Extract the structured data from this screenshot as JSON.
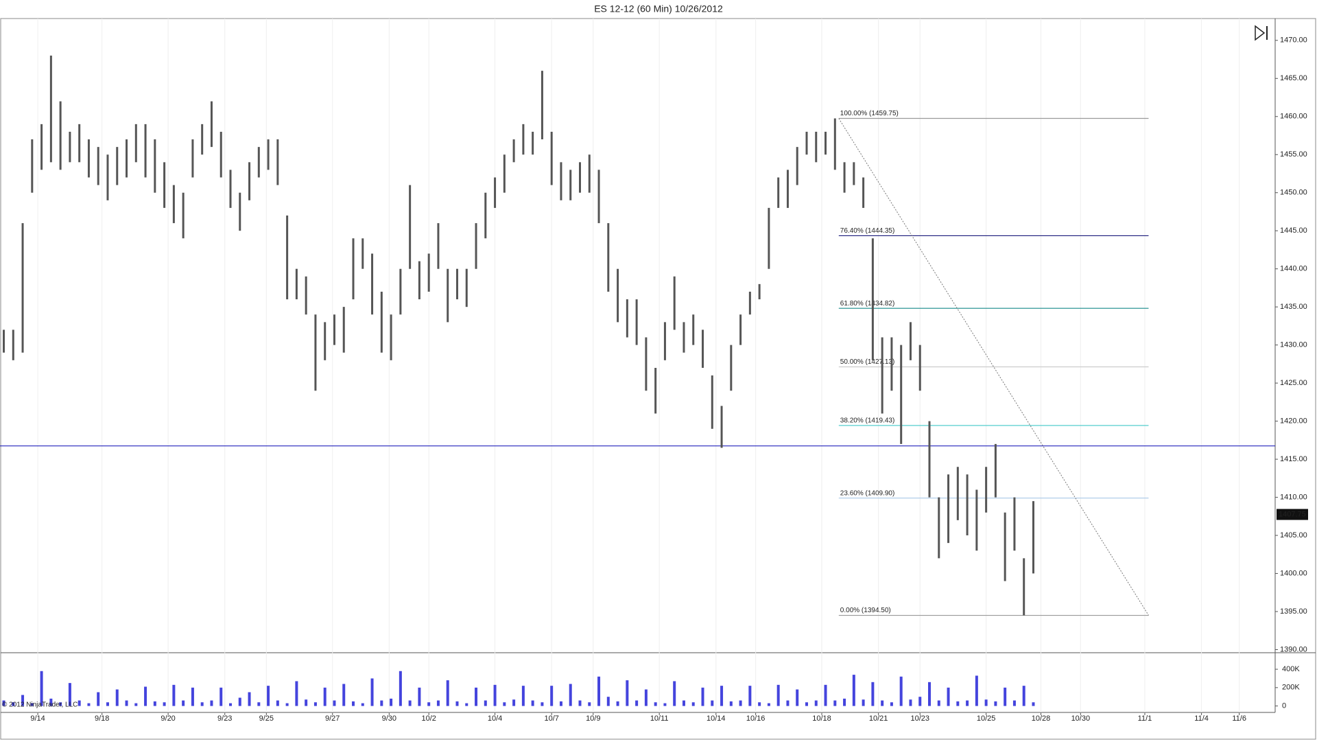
{
  "chart_data": {
    "type": "ohlc",
    "title": "ES 12-12 (60 Min)  10/26/2012",
    "copyright": "© 2012 NinjaTrader, LLC",
    "color": "#555555",
    "grid": "x",
    "xlim": [
      0,
      675
    ],
    "xticks": [
      {
        "value": 20,
        "label": "9/14"
      },
      {
        "value": 54,
        "label": "9/18"
      },
      {
        "value": 89,
        "label": "9/20"
      },
      {
        "value": 119,
        "label": "9/23"
      },
      {
        "value": 141,
        "label": "9/25"
      },
      {
        "value": 176,
        "label": "9/27"
      },
      {
        "value": 206,
        "label": "9/30"
      },
      {
        "value": 227,
        "label": "10/2"
      },
      {
        "value": 262,
        "label": "10/4"
      },
      {
        "value": 292,
        "label": "10/7"
      },
      {
        "value": 314,
        "label": "10/9"
      },
      {
        "value": 349,
        "label": "10/11"
      },
      {
        "value": 379,
        "label": "10/14"
      },
      {
        "value": 400,
        "label": "10/16"
      },
      {
        "value": 435,
        "label": "10/18"
      },
      {
        "value": 465,
        "label": "10/21"
      },
      {
        "value": 487,
        "label": "10/23"
      },
      {
        "value": 522,
        "label": "10/25"
      },
      {
        "value": 551,
        "label": "10/28"
      },
      {
        "value": 572,
        "label": "10/30"
      },
      {
        "value": 606,
        "label": "11/1"
      },
      {
        "value": 636,
        "label": "11/4"
      },
      {
        "value": 656,
        "label": "11/6"
      }
    ],
    "ylim": [
      1390,
      1470
    ],
    "yticks": [
      {
        "value": 1390,
        "label": "1390.00"
      },
      {
        "value": 1395,
        "label": "1395.00"
      },
      {
        "value": 1400,
        "label": "1400.00"
      },
      {
        "value": 1405,
        "label": "1405.00"
      },
      {
        "value": 1410,
        "label": "1410.00"
      },
      {
        "value": 1415,
        "label": "1415.00"
      },
      {
        "value": 1420,
        "label": "1420.00"
      },
      {
        "value": 1425,
        "label": "1425.00"
      },
      {
        "value": 1430,
        "label": "1430.00"
      },
      {
        "value": 1435,
        "label": "1435.00"
      },
      {
        "value": 1440,
        "label": "1440.00"
      },
      {
        "value": 1445,
        "label": "1445.00"
      },
      {
        "value": 1450,
        "label": "1450.00"
      },
      {
        "value": 1455,
        "label": "1455.00"
      },
      {
        "value": 1460,
        "label": "1460.00"
      },
      {
        "value": 1465,
        "label": "1465.00"
      },
      {
        "value": 1470,
        "label": "1470.00"
      }
    ],
    "last_price": 1407.75,
    "support_line": {
      "value": 1416.75,
      "color": "#2222bb"
    },
    "bars": {
      "x": [
        2,
        7,
        12,
        17,
        22,
        27,
        32,
        37,
        42,
        47,
        52,
        57,
        62,
        67,
        72,
        77,
        82,
        87,
        92,
        97,
        102,
        107,
        112,
        117,
        122,
        127,
        132,
        137,
        142,
        147,
        152,
        157,
        162,
        167,
        172,
        177,
        182,
        187,
        192,
        197,
        202,
        207,
        212,
        217,
        222,
        227,
        232,
        237,
        242,
        247,
        252,
        257,
        262,
        267,
        272,
        277,
        282,
        287,
        292,
        297,
        302,
        307,
        312,
        317,
        322,
        327,
        332,
        337,
        342,
        347,
        352,
        357,
        362,
        367,
        372,
        377,
        382,
        387,
        392,
        397,
        402,
        407,
        412,
        417,
        422,
        427,
        432,
        437,
        442,
        447,
        452,
        457,
        462,
        467,
        472,
        477,
        482,
        487,
        492,
        497,
        502,
        507,
        512,
        517,
        522,
        527,
        532,
        537,
        542,
        547
      ],
      "high": [
        1432,
        1432,
        1446,
        1457,
        1459,
        1468,
        1462,
        1458,
        1459,
        1457,
        1456,
        1455,
        1456,
        1457,
        1459,
        1459,
        1457,
        1454,
        1451,
        1450,
        1457,
        1459,
        1462,
        1458,
        1453,
        1450,
        1454,
        1456,
        1457,
        1457,
        1447,
        1440,
        1439,
        1434,
        1433,
        1434,
        1435,
        1444,
        1444,
        1442,
        1437,
        1434,
        1440,
        1451,
        1441,
        1442,
        1446,
        1440,
        1440,
        1440,
        1446,
        1450,
        1452,
        1455,
        1457,
        1459,
        1458,
        1466,
        1458,
        1454,
        1453,
        1454,
        1455,
        1453,
        1446,
        1440,
        1436,
        1436,
        1431,
        1427,
        1433,
        1439,
        1433,
        1434,
        1432,
        1426,
        1422,
        1430,
        1434,
        1437,
        1438,
        1448,
        1452,
        1453,
        1456,
        1458,
        1458,
        1458,
        1459.75,
        1454,
        1454,
        1452,
        1444,
        1431,
        1431,
        1430,
        1433,
        1430,
        1420,
        1410,
        1413,
        1414,
        1413,
        1411,
        1414,
        1417,
        1408,
        1410,
        1402,
        1409.5
      ],
      "low": [
        1429,
        1428,
        1429,
        1450,
        1453,
        1454,
        1453,
        1454,
        1454,
        1452,
        1451,
        1449,
        1451,
        1452,
        1454,
        1452,
        1450,
        1448,
        1446,
        1444,
        1452,
        1455,
        1456,
        1452,
        1448,
        1445,
        1449,
        1452,
        1453,
        1451,
        1436,
        1436,
        1434,
        1424,
        1428,
        1430,
        1429,
        1436,
        1440,
        1434,
        1429,
        1428,
        1434,
        1440,
        1436,
        1437,
        1440,
        1433,
        1436,
        1435,
        1440,
        1444,
        1448,
        1450,
        1454,
        1455,
        1455,
        1457,
        1451,
        1449,
        1449,
        1450,
        1450,
        1446,
        1437,
        1433,
        1431,
        1430,
        1424,
        1421,
        1428,
        1432,
        1429,
        1430,
        1427,
        1419,
        1416.5,
        1424,
        1430,
        1434,
        1436,
        1440,
        1448,
        1448,
        1451,
        1455,
        1454,
        1455,
        1453,
        1450,
        1451,
        1448,
        1428,
        1421,
        1424,
        1417,
        1428,
        1424,
        1410,
        1402,
        1404,
        1407,
        1405,
        1403,
        1408,
        1410,
        1399,
        1403,
        1394.5,
        1400
      ]
    },
    "fibonacci": {
      "x": [
        444,
        608
      ],
      "levels": [
        {
          "label": "100.00% (1459.75)",
          "value": 1459.75,
          "color": "#999999"
        },
        {
          "label": "76.40% (1444.35)",
          "value": 1444.35,
          "color": "#1a1a7a"
        },
        {
          "label": "61.80% (1434.82)",
          "value": 1434.82,
          "color": "#158a8a"
        },
        {
          "label": "50.00% (1427.13)",
          "value": 1427.13,
          "color": "#cccccc"
        },
        {
          "label": "38.20% (1419.43)",
          "value": 1419.43,
          "color": "#40c8c8"
        },
        {
          "label": "23.60% (1409.90)",
          "value": 1409.9,
          "color": "#a8c8e8"
        },
        {
          "label": "0.00% (1394.50)",
          "value": 1394.5,
          "color": "#999999"
        }
      ]
    },
    "volume": {
      "color": "#4444dd",
      "ylim": [
        0,
        580000
      ],
      "yticks": [
        0,
        {
          "value": 200000,
          "label": "200K"
        },
        {
          "value": 400000,
          "label": "400K"
        }
      ],
      "values": [
        60000,
        40000,
        120000,
        30000,
        380000,
        80000,
        40000,
        250000,
        60000,
        30000,
        150000,
        40000,
        180000,
        60000,
        30000,
        210000,
        50000,
        40000,
        230000,
        60000,
        200000,
        40000,
        60000,
        200000,
        30000,
        90000,
        150000,
        40000,
        220000,
        60000,
        30000,
        270000,
        70000,
        40000,
        200000,
        60000,
        240000,
        50000,
        30000,
        300000,
        60000,
        80000,
        380000,
        60000,
        200000,
        40000,
        60000,
        280000,
        50000,
        30000,
        200000,
        60000,
        230000,
        40000,
        70000,
        220000,
        60000,
        40000,
        220000,
        50000,
        240000,
        60000,
        40000,
        320000,
        100000,
        50000,
        280000,
        60000,
        180000,
        40000,
        30000,
        270000,
        60000,
        40000,
        200000,
        60000,
        220000,
        50000,
        60000,
        220000,
        40000,
        30000,
        230000,
        60000,
        180000,
        40000,
        60000,
        230000,
        60000,
        80000,
        340000,
        70000,
        260000,
        60000,
        40000,
        320000,
        70000,
        100000,
        260000,
        60000,
        200000,
        50000,
        60000,
        330000,
        70000,
        50000,
        200000,
        60000,
        220000,
        40000
      ]
    }
  }
}
